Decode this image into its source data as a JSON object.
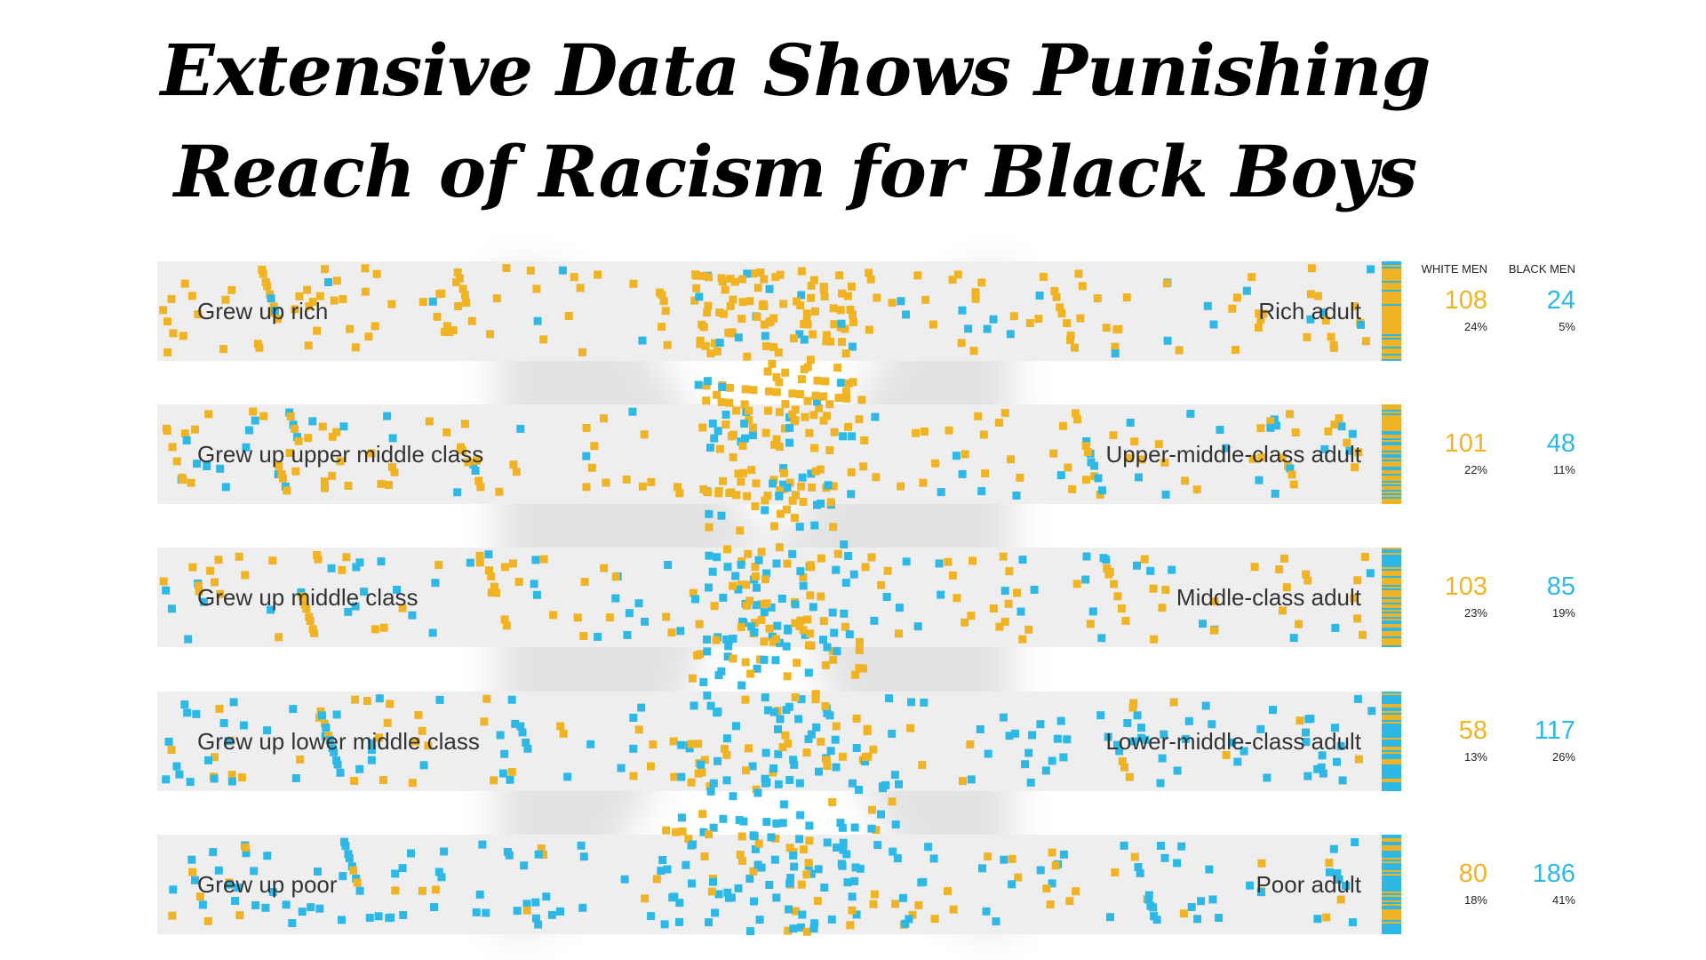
{
  "headline": {
    "line1": "Extensive Data Shows Punishing",
    "line2": "Reach of Racism for Black Boys"
  },
  "colors": {
    "white_men": "#F0B323",
    "black_men": "#2DB8E6",
    "band": "#EEEEEE",
    "flow": "#E2E2E2"
  },
  "chart_data": {
    "type": "flow-dot",
    "columns": [
      "WHITE MEN",
      "BLACK MEN"
    ],
    "rows": [
      {
        "origin": "Grew up rich",
        "destination": "Rich adult",
        "white_count": "108",
        "white_pct": "24%",
        "black_count": "24",
        "black_pct": "5%"
      },
      {
        "origin": "Grew up upper middle class",
        "destination": "Upper-middle-class adult",
        "white_count": "101",
        "white_pct": "22%",
        "black_count": "48",
        "black_pct": "11%"
      },
      {
        "origin": "Grew up middle class",
        "destination": "Middle-class adult",
        "white_count": "103",
        "white_pct": "23%",
        "black_count": "85",
        "black_pct": "19%"
      },
      {
        "origin": "Grew up lower middle class",
        "destination": "Lower-middle-class adult",
        "white_count": "58",
        "white_pct": "13%",
        "black_count": "117",
        "black_pct": "26%"
      },
      {
        "origin": "Grew up poor",
        "destination": "Poor adult",
        "white_count": "80",
        "white_pct": "18%",
        "black_count": "186",
        "black_pct": "41%"
      }
    ],
    "origin_black_share": [
      0.08,
      0.22,
      0.35,
      0.6,
      0.75
    ],
    "destination_black_share": [
      0.18,
      0.32,
      0.45,
      0.67,
      0.7
    ]
  }
}
